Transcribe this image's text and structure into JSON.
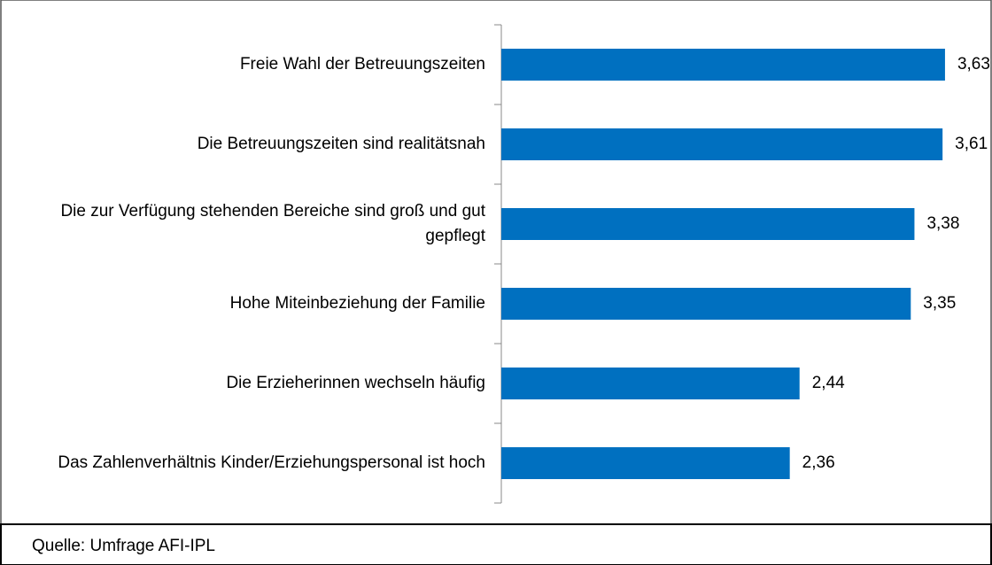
{
  "chart_data": {
    "type": "bar",
    "orientation": "horizontal",
    "categories": [
      "Freie Wahl der Betreuungszeiten",
      "Die Betreuungszeiten sind realitätsnah",
      "Die zur Verfügung stehenden Bereiche sind groß und gut gepflegt",
      "Hohe Miteinbeziehung der Familie",
      "Die Erzieherinnen wechseln häufig",
      "Das Zahlenverhältnis Kinder/Erziehungspersonal ist hoch"
    ],
    "values": [
      3.63,
      3.61,
      3.38,
      3.35,
      2.44,
      2.36
    ],
    "value_labels": [
      "3,63",
      "3,61",
      "3,38",
      "3,35",
      "2,44",
      "2,36"
    ],
    "color": "#0070c0",
    "xlim": [
      0,
      4
    ],
    "source": "Quelle: Umfrage AFI-IPL"
  }
}
